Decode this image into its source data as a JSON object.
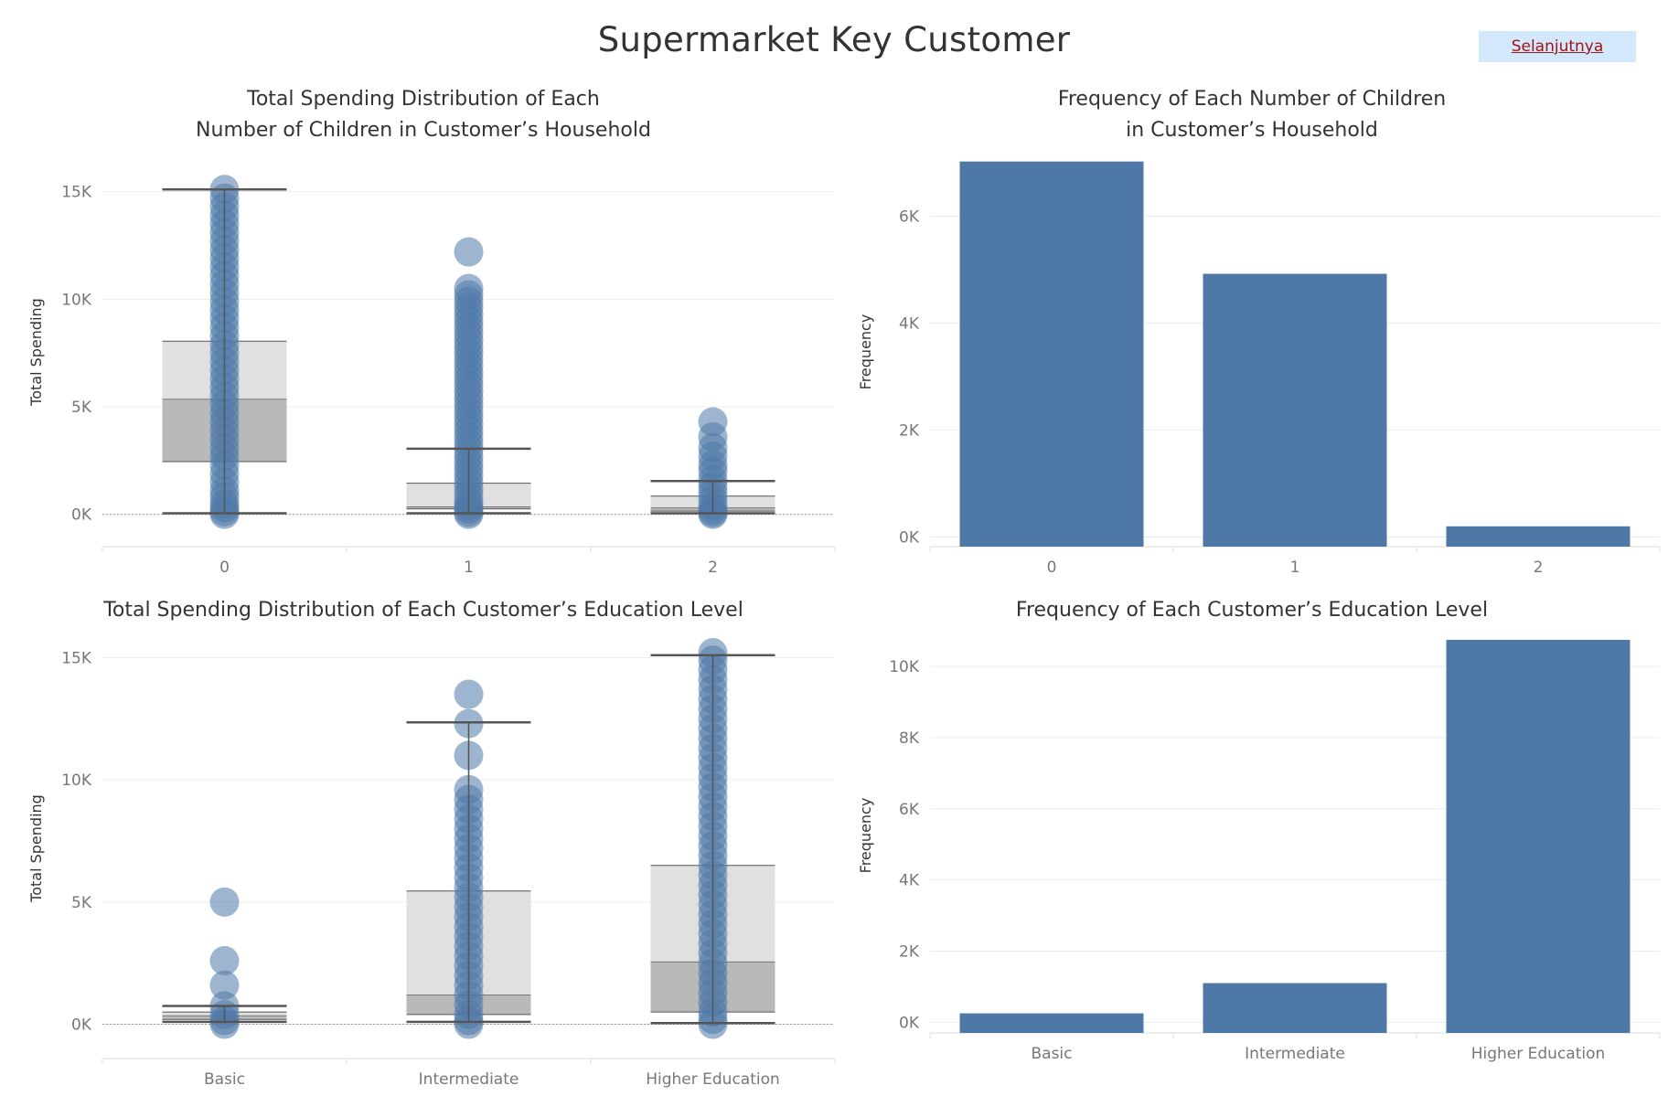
{
  "header": {
    "title": "Supermarket Key Customer",
    "next_label": "Selanjutnya"
  },
  "colors": {
    "mark": "#4e79a7",
    "box_upper": "#e0e0e0",
    "box_lower": "#b9b9b9",
    "whisker": "#555555",
    "grid": "#ececec",
    "axis_text": "#777777"
  },
  "chart_data": [
    {
      "id": "children-spending",
      "type": "box",
      "title_lines": [
        "Total Spending Distribution of Each",
        "Number of Children in Customer’s Household"
      ],
      "xlabel": "",
      "ylabel": "Total Spending",
      "ylim": [
        -1500,
        16600
      ],
      "yticks": [
        0,
        5000,
        10000,
        15000
      ],
      "ytick_labels": [
        "0K",
        "5K",
        "10K",
        "15K"
      ],
      "categories": [
        "0",
        "1",
        "2"
      ],
      "boxes": [
        {
          "whisker_low": 50,
          "q1": 2450,
          "median": 5350,
          "q3": 8050,
          "whisker_high": 15100,
          "points": [
            0,
            120,
            300,
            500,
            800,
            1100,
            1500,
            1900,
            2300,
            2700,
            3100,
            3500,
            3900,
            4300,
            4700,
            5100,
            5500,
            5900,
            6300,
            6700,
            7100,
            7500,
            7900,
            8300,
            8700,
            9100,
            9500,
            9900,
            10300,
            10700,
            11100,
            11500,
            11900,
            12300,
            12700,
            13100,
            13500,
            13900,
            14300,
            14700,
            15100
          ]
        },
        {
          "whisker_low": 50,
          "q1": 250,
          "median": 350,
          "q3": 1450,
          "whisker_high": 3050,
          "points": [
            0,
            100,
            250,
            400,
            600,
            900,
            1200,
            1500,
            1800,
            2100,
            2400,
            2700,
            3000,
            3300,
            3600,
            3900,
            4200,
            4500,
            4800,
            5100,
            5400,
            5700,
            6000,
            6300,
            6600,
            6900,
            7200,
            7500,
            7800,
            8100,
            8400,
            8700,
            9000,
            9300,
            9600,
            9900,
            10200,
            10500,
            12200
          ]
        },
        {
          "whisker_low": 50,
          "q1": 150,
          "median": 300,
          "q3": 850,
          "whisker_high": 1550,
          "points": [
            0,
            80,
            200,
            400,
            700,
            1000,
            1300,
            1600,
            2000,
            2300,
            2700,
            3100,
            3600,
            4300
          ]
        }
      ]
    },
    {
      "id": "children-frequency",
      "type": "bar",
      "title_lines": [
        "Frequency of Each Number of Children",
        "in Customer’s Household"
      ],
      "xlabel": "",
      "ylabel": "Frequency",
      "ylim": [
        -180,
        7100
      ],
      "yticks": [
        0,
        2000,
        4000,
        6000
      ],
      "ytick_labels": [
        "0K",
        "2K",
        "4K",
        "6K"
      ],
      "categories": [
        "0",
        "1",
        "2"
      ],
      "values": [
        7020,
        4920,
        200
      ]
    },
    {
      "id": "education-spending",
      "type": "box",
      "title_lines": [
        "Total Spending Distribution of Each Customer’s Education Level"
      ],
      "xlabel": "",
      "ylabel": "Total Spending",
      "ylim": [
        -1400,
        15800
      ],
      "yticks": [
        0,
        5000,
        10000,
        15000
      ],
      "ytick_labels": [
        "0K",
        "5K",
        "10K",
        "15K"
      ],
      "categories": [
        "Basic",
        "Intermediate",
        "Higher Education"
      ],
      "boxes": [
        {
          "whisker_low": 100,
          "q1": 200,
          "median": 350,
          "q3": 500,
          "whisker_high": 750,
          "points": [
            0,
            150,
            400,
            750,
            1600,
            2600,
            5000
          ]
        },
        {
          "whisker_low": 100,
          "q1": 400,
          "median": 1200,
          "q3": 5450,
          "whisker_high": 12350,
          "points": [
            0,
            150,
            400,
            800,
            1200,
            1600,
            2000,
            2400,
            2800,
            3200,
            3600,
            4000,
            4400,
            4800,
            5200,
            5600,
            6000,
            6400,
            6800,
            7200,
            7600,
            8000,
            8400,
            8800,
            9200,
            9600,
            11000,
            12300,
            13500
          ]
        },
        {
          "whisker_low": 50,
          "q1": 500,
          "median": 2550,
          "q3": 6500,
          "whisker_high": 15100,
          "points": [
            0,
            200,
            500,
            900,
            1300,
            1700,
            2100,
            2500,
            2900,
            3300,
            3700,
            4100,
            4500,
            4900,
            5300,
            5700,
            6100,
            6500,
            6900,
            7300,
            7700,
            8100,
            8500,
            8900,
            9300,
            9700,
            10100,
            10500,
            10900,
            11300,
            11700,
            12100,
            12500,
            12900,
            13300,
            13700,
            14100,
            14500,
            14900,
            15200
          ]
        }
      ]
    },
    {
      "id": "education-frequency",
      "type": "bar",
      "title_lines": [
        "Frequency of Each Customer’s Education Level"
      ],
      "xlabel": "",
      "ylabel": "Frequency",
      "ylim": [
        -300,
        10800
      ],
      "yticks": [
        0,
        2000,
        4000,
        6000,
        8000,
        10000
      ],
      "ytick_labels": [
        "0K",
        "2K",
        "4K",
        "6K",
        "8K",
        "10K"
      ],
      "categories": [
        "Basic",
        "Intermediate",
        "Higher Education"
      ],
      "values": [
        250,
        1100,
        10750
      ]
    }
  ]
}
